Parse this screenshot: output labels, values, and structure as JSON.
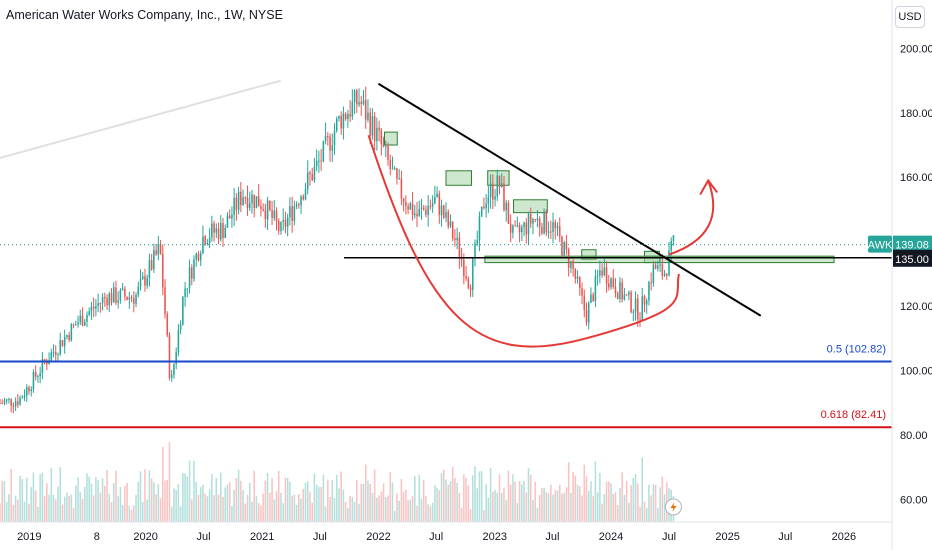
{
  "header": {
    "title": "American Water Works Company, Inc., 1W, NYSE",
    "currency": "USD"
  },
  "colors": {
    "up": "#26a69a",
    "down": "#ef5350",
    "fib_half": "#1848cc",
    "fib_618": "#d60f19",
    "arc": "#e53935",
    "trend": "#000000",
    "zone_fill": "#a5d6a7",
    "badge_awk": "#26a69a",
    "badge_last": "#131722"
  },
  "chart_data": {
    "type": "candlestick",
    "symbol": "AWK",
    "interval": "1W",
    "y_ticks": [
      200,
      180,
      160,
      120,
      100,
      80,
      60
    ],
    "y_tick_labels": [
      "200.00",
      "180.00",
      "160.00",
      "120.00",
      "100.00",
      "80.00",
      "60.00"
    ],
    "ylim": [
      53,
      215
    ],
    "x_ticks": [
      "2019",
      "8",
      "2020",
      "Jul",
      "2021",
      "Jul",
      "2022",
      "Jul",
      "2023",
      "Jul",
      "2024",
      "Jul",
      "2025",
      "Jul",
      "2026"
    ],
    "xlim": [
      "2018-10-01",
      "2026-06-01"
    ],
    "current_price": 139.08,
    "current_price_label": "139.08",
    "symbol_label": "AWK",
    "support_level": 135.0,
    "support_label": "135.00",
    "fib_levels": [
      {
        "ratio": 0.5,
        "price": 102.82,
        "label": "0.5 (102.82)"
      },
      {
        "ratio": 0.618,
        "price": 82.41,
        "label": "0.618 (82.41)"
      }
    ],
    "closes": [
      {
        "date": "2018-10-01",
        "close": 90
      },
      {
        "date": "2018-12-01",
        "close": 91
      },
      {
        "date": "2019-03-01",
        "close": 104
      },
      {
        "date": "2019-06-01",
        "close": 115
      },
      {
        "date": "2019-09-01",
        "close": 123
      },
      {
        "date": "2019-12-01",
        "close": 123
      },
      {
        "date": "2020-02-15",
        "close": 138
      },
      {
        "date": "2020-03-20",
        "close": 95
      },
      {
        "date": "2020-05-01",
        "close": 125
      },
      {
        "date": "2020-07-01",
        "close": 142
      },
      {
        "date": "2020-09-01",
        "close": 144
      },
      {
        "date": "2020-11-01",
        "close": 155
      },
      {
        "date": "2021-01-01",
        "close": 152
      },
      {
        "date": "2021-03-01",
        "close": 143
      },
      {
        "date": "2021-05-01",
        "close": 155
      },
      {
        "date": "2021-07-01",
        "close": 165
      },
      {
        "date": "2021-09-01",
        "close": 178
      },
      {
        "date": "2021-11-01",
        "close": 184
      },
      {
        "date": "2022-01-01",
        "close": 172
      },
      {
        "date": "2022-03-01",
        "close": 157
      },
      {
        "date": "2022-05-01",
        "close": 148
      },
      {
        "date": "2022-07-01",
        "close": 153
      },
      {
        "date": "2022-09-01",
        "close": 140
      },
      {
        "date": "2022-10-15",
        "close": 127
      },
      {
        "date": "2022-12-01",
        "close": 154
      },
      {
        "date": "2023-01-15",
        "close": 158
      },
      {
        "date": "2023-03-01",
        "close": 141
      },
      {
        "date": "2023-05-01",
        "close": 147
      },
      {
        "date": "2023-07-01",
        "close": 145
      },
      {
        "date": "2023-09-01",
        "close": 132
      },
      {
        "date": "2023-10-15",
        "close": 117
      },
      {
        "date": "2023-12-01",
        "close": 132
      },
      {
        "date": "2024-02-01",
        "close": 124
      },
      {
        "date": "2024-04-01",
        "close": 118
      },
      {
        "date": "2024-05-15",
        "close": 132
      },
      {
        "date": "2024-06-15",
        "close": 130
      },
      {
        "date": "2024-07-15",
        "close": 139
      }
    ],
    "trendline": {
      "start": {
        "date": "2022-01-01",
        "price": 189
      },
      "end": {
        "date": "2025-04-15",
        "price": 117
      }
    },
    "faint_line": {
      "start": {
        "date": "2018-10-01",
        "price": 166
      },
      "end": {
        "date": "2021-03-01",
        "price": 190
      }
    },
    "projection_arrow": {
      "start": {
        "date": "2024-07-01",
        "price": 136
      },
      "tip": {
        "date": "2024-11-01",
        "price": 159
      }
    },
    "arc": [
      {
        "date": "2021-12-01",
        "price": 173
      },
      {
        "date": "2022-09-01",
        "price": 128
      },
      {
        "date": "2023-10-15",
        "price": 110
      },
      {
        "date": "2024-08-01",
        "price": 130
      }
    ],
    "zones": [
      {
        "start": "2022-01-20",
        "end": "2022-03-01",
        "low": 170,
        "high": 174
      },
      {
        "start": "2022-08-01",
        "end": "2022-10-20",
        "low": 157.5,
        "high": 162
      },
      {
        "start": "2022-12-10",
        "end": "2023-02-15",
        "low": 157.5,
        "high": 162
      },
      {
        "start": "2023-03-01",
        "end": "2023-06-15",
        "low": 149,
        "high": 153
      },
      {
        "start": "2023-10-01",
        "end": "2023-11-15",
        "low": 134.5,
        "high": 137.5
      },
      {
        "start": "2024-04-15",
        "end": "2024-06-01",
        "low": 133.5,
        "high": 137
      },
      {
        "start": "2022-12-01",
        "end": "2025-12-01",
        "low": 133.5,
        "high": 135.5
      }
    ],
    "support_line": {
      "start": "2021-09-15",
      "end": "2026-06-01"
    },
    "volume_note": "relative weekly volume histogram at bottom"
  }
}
